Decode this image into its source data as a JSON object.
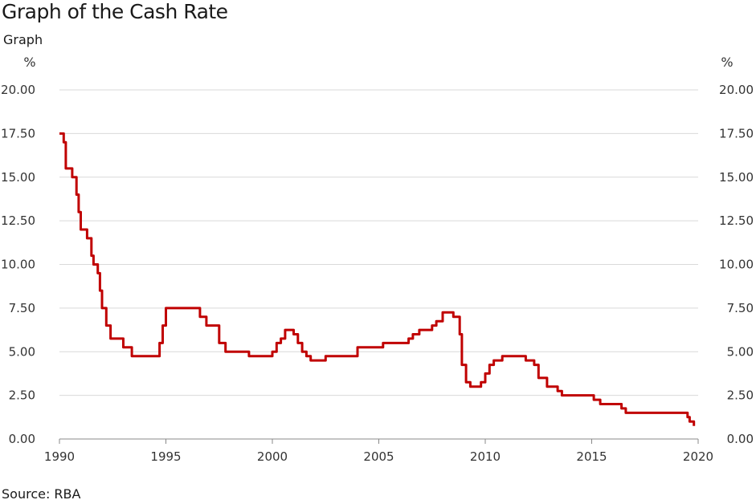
{
  "title": "Graph of the Cash Rate",
  "subtitle": "Graph",
  "source": "Source: RBA",
  "colors": {
    "line": "#c00000",
    "grid": "#d9d9d9",
    "axis": "#888888"
  },
  "chart_data": {
    "type": "line",
    "title": "Graph of the Cash Rate",
    "yunit_left": "%",
    "yunit_right": "%",
    "xlim": [
      1990,
      2020
    ],
    "ylim": [
      0,
      20
    ],
    "xticks": [
      "1990",
      "1995",
      "2000",
      "2005",
      "2010",
      "2015",
      "2020"
    ],
    "yticks": [
      "0.00",
      "2.50",
      "5.00",
      "7.50",
      "10.00",
      "12.50",
      "15.00",
      "17.50",
      "20.00"
    ],
    "grid": true,
    "step": true,
    "series": [
      {
        "x": [
          1990.0,
          1990.2,
          1990.3,
          1990.6,
          1990.8,
          1990.9,
          1991.0,
          1991.3,
          1991.5,
          1991.6,
          1991.8,
          1991.9,
          1992.0,
          1992.2,
          1992.4,
          1992.6,
          1993.0,
          1993.4,
          1993.7,
          1994.0,
          1994.7,
          1994.85,
          1995.0,
          1996.6,
          1996.9,
          1997.5,
          1997.8,
          1998.9,
          1999.8,
          2000.0,
          2000.2,
          2000.4,
          2000.6,
          2001.0,
          2001.2,
          2001.4,
          2001.6,
          2001.8,
          2002.3,
          2002.5,
          2003.9,
          2004.0,
          2005.2,
          2006.4,
          2006.6,
          2006.9,
          2007.5,
          2007.7,
          2008.0,
          2008.5,
          2008.8,
          2008.9,
          2009.1,
          2009.3,
          2009.8,
          2010.0,
          2010.2,
          2010.4,
          2010.8,
          2011.9,
          2012.3,
          2012.5,
          2012.9,
          2013.4,
          2013.6,
          2015.1,
          2015.4,
          2016.4,
          2016.6,
          2019.5,
          2019.6,
          2019.8
        ],
        "y": [
          17.5,
          17.0,
          15.5,
          15.0,
          14.0,
          13.0,
          12.0,
          11.5,
          10.5,
          10.0,
          9.5,
          8.5,
          7.5,
          6.5,
          5.75,
          5.75,
          5.25,
          4.75,
          4.75,
          4.75,
          5.5,
          6.5,
          7.5,
          7.0,
          6.5,
          5.5,
          5.0,
          4.75,
          4.75,
          5.0,
          5.5,
          5.75,
          6.25,
          6.0,
          5.5,
          5.0,
          4.75,
          4.5,
          4.5,
          4.75,
          4.75,
          5.25,
          5.5,
          5.75,
          6.0,
          6.25,
          6.5,
          6.75,
          7.25,
          7.0,
          6.0,
          4.25,
          3.25,
          3.0,
          3.25,
          3.75,
          4.25,
          4.5,
          4.75,
          4.5,
          4.25,
          3.5,
          3.0,
          2.75,
          2.5,
          2.25,
          2.0,
          1.75,
          1.5,
          1.25,
          1.0,
          0.75
        ]
      }
    ]
  }
}
